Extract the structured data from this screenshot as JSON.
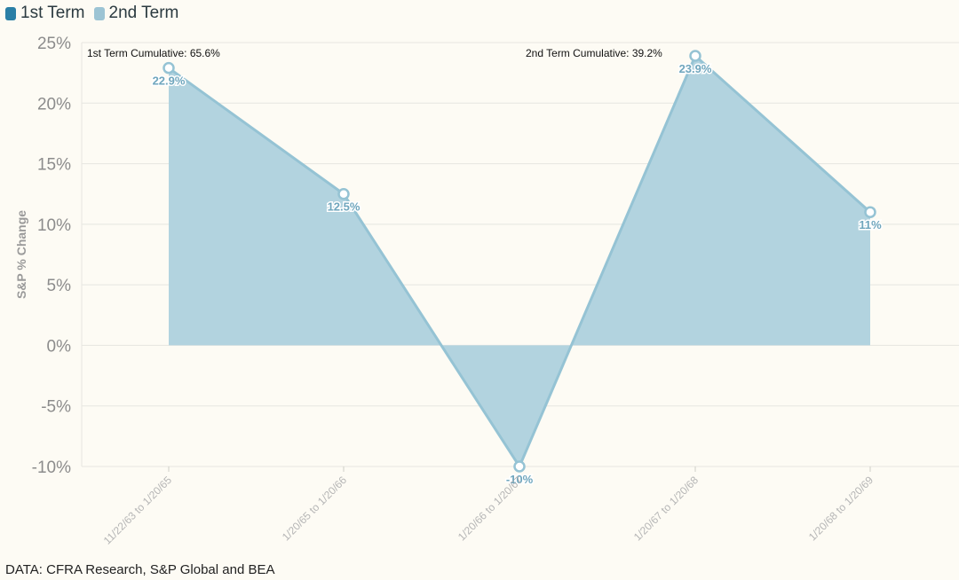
{
  "legend": {
    "items": [
      {
        "label": "1st Term",
        "color": "#2a7fa6"
      },
      {
        "label": "2nd Term",
        "color": "#9cc4d4"
      }
    ]
  },
  "source": "DATA: CFRA Research, S&P Global and BEA",
  "colors": {
    "fill": "#b2d3df",
    "line": "#95c3d4",
    "grid": "#e6e6e0",
    "tick": "#8c8c8c",
    "label_text": "#6fa6bd"
  },
  "chart_data": {
    "type": "area",
    "categories": [
      "11/22/63 to 1/20/65",
      "1/20/65 to 1/20/66",
      "1/20/66 to 1/20/67",
      "1/20/67 to 1/20/68",
      "1/20/68 to 1/20/69"
    ],
    "series": [
      {
        "values": [
          22.9,
          12.5,
          -10,
          23.9,
          11
        ]
      }
    ],
    "data_labels": [
      "22.9%",
      "12.5%",
      "-10%",
      "23.9%",
      "11%"
    ],
    "ylabel": "S&P % Change",
    "ylim": [
      -10,
      25
    ],
    "yticks": [
      25,
      20,
      15,
      10,
      5,
      0,
      -5,
      -10
    ],
    "ytick_labels": [
      "25%",
      "20%",
      "15%",
      "10%",
      "5%",
      "0%",
      "-5%",
      "-10%"
    ],
    "annotations": [
      {
        "text": "1st Term Cumulative: 65.6%",
        "category_index": 0
      },
      {
        "text": "2nd Term Cumulative: 39.2%",
        "category_index": 3
      }
    ],
    "grid": true
  }
}
